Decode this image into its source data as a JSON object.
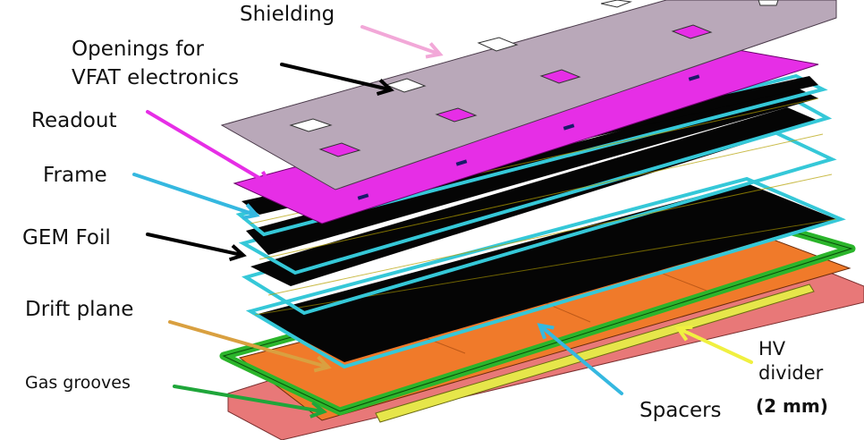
{
  "labels": {
    "shielding": "Shielding",
    "openings_line1": "Openings for",
    "openings_line2": "VFAT electronics",
    "readout": "Readout",
    "frame": "Frame",
    "gem_foil": "GEM Foil",
    "drift_plane": "Drift plane",
    "gas_grooves": "Gas grooves",
    "hv_line1": "HV",
    "hv_line2": "divider",
    "spacers": "Spacers",
    "spacers_size": "(2 mm)"
  },
  "colors": {
    "shielding": "#b9a8b9",
    "readout": "#e62ee6",
    "frame": "#35c8d8",
    "gem_foil": "#050505",
    "drift": "#f07a2a",
    "gas_frame": "#2bb52b",
    "base": "#e87878",
    "hv_strip": "#e6e64a",
    "arrow_shielding": "#f2a8d8",
    "arrow_openings": "#000000",
    "arrow_readout": "#e62ee6",
    "arrow_frame": "#35b8e0",
    "arrow_gem": "#000000",
    "arrow_drift": "#d9a040",
    "arrow_gas": "#1fa63a",
    "arrow_spacers": "#35b8e0",
    "arrow_hv": "#f0f040"
  }
}
